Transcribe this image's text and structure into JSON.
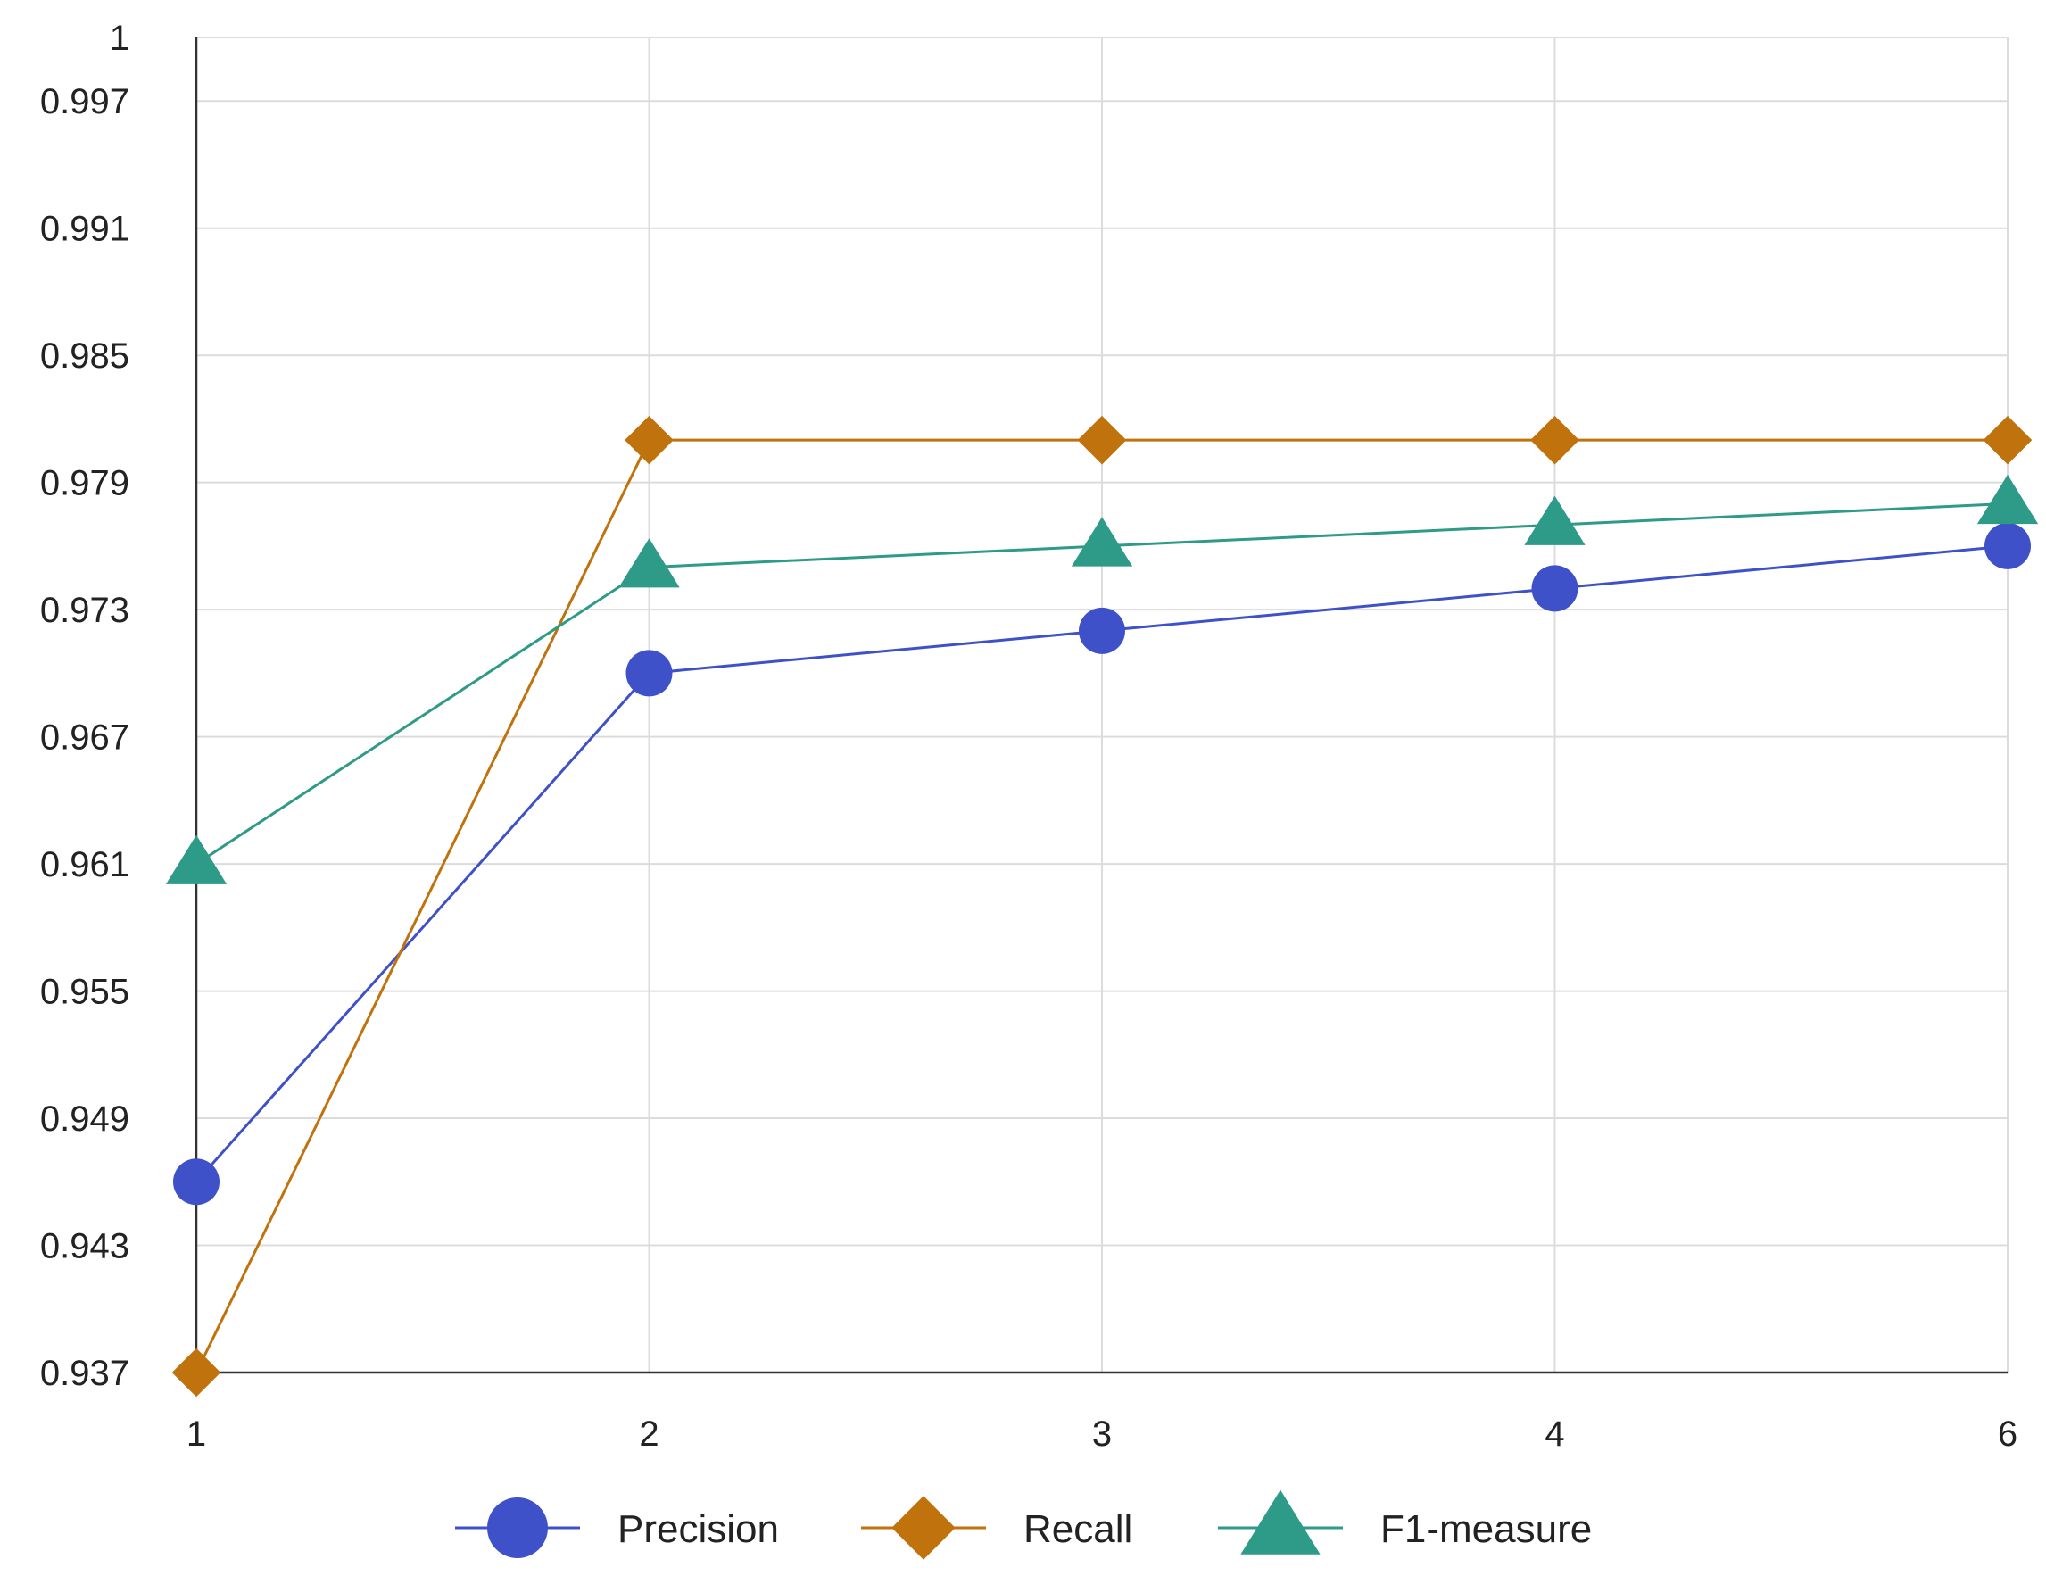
{
  "chart_data": {
    "type": "line",
    "title": "",
    "xlabel": "",
    "ylabel": "",
    "categories": [
      "1",
      "2",
      "3",
      "4",
      "6"
    ],
    "y_ticks": [
      "0.937",
      "0.943",
      "0.949",
      "0.955",
      "0.961",
      "0.967",
      "0.973",
      "0.979",
      "0.985",
      "0.991",
      "0.997",
      "1"
    ],
    "y_tick_values": [
      0.937,
      0.943,
      0.949,
      0.955,
      0.961,
      0.967,
      0.973,
      0.979,
      0.985,
      0.991,
      0.997,
      1.0
    ],
    "ylim": [
      0.937,
      1.0
    ],
    "grid": true,
    "legend_position": "bottom",
    "series": [
      {
        "name": "Precision",
        "values": [
          0.946,
          0.97,
          0.972,
          0.974,
          0.976
        ],
        "color": "#3F51C8",
        "marker": "circle"
      },
      {
        "name": "Recall",
        "values": [
          0.937,
          0.981,
          0.981,
          0.981,
          0.981
        ],
        "color": "#C0720C",
        "marker": "diamond"
      },
      {
        "name": "F1-measure",
        "values": [
          0.961,
          0.975,
          0.976,
          0.977,
          0.978
        ],
        "color": "#2E9A88",
        "marker": "triangle"
      }
    ]
  }
}
